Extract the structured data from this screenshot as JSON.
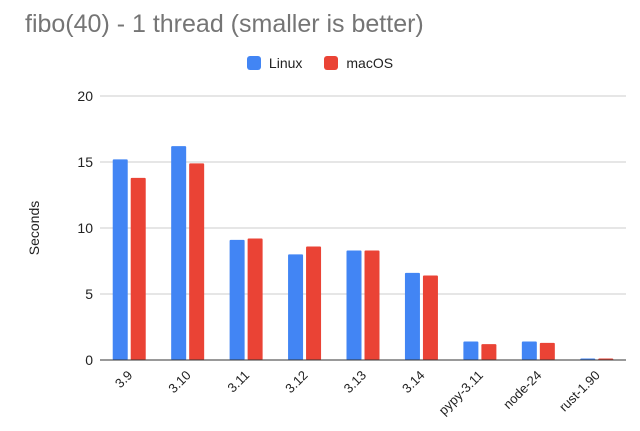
{
  "chart_data": {
    "type": "bar",
    "title": "fibo(40) - 1 thread (smaller is better)",
    "ylabel": "Seconds",
    "xlabel": "",
    "ylim": [
      0,
      20
    ],
    "yticks": [
      0,
      5,
      10,
      15,
      20
    ],
    "grid": true,
    "legend_position": "top-center",
    "categories": [
      "3.9",
      "3.10",
      "3.11",
      "3.12",
      "3.13",
      "3.14",
      "pypy-3.11",
      "node-24",
      "rust-1.90"
    ],
    "series": [
      {
        "name": "Linux",
        "color": "#4285f4",
        "values": [
          15.2,
          16.2,
          9.1,
          8.0,
          8.3,
          6.6,
          1.4,
          1.4,
          0.1
        ]
      },
      {
        "name": "macOS",
        "color": "#ea4335",
        "values": [
          13.8,
          14.9,
          9.2,
          8.6,
          8.3,
          6.4,
          1.2,
          1.3,
          0.1
        ]
      }
    ]
  }
}
